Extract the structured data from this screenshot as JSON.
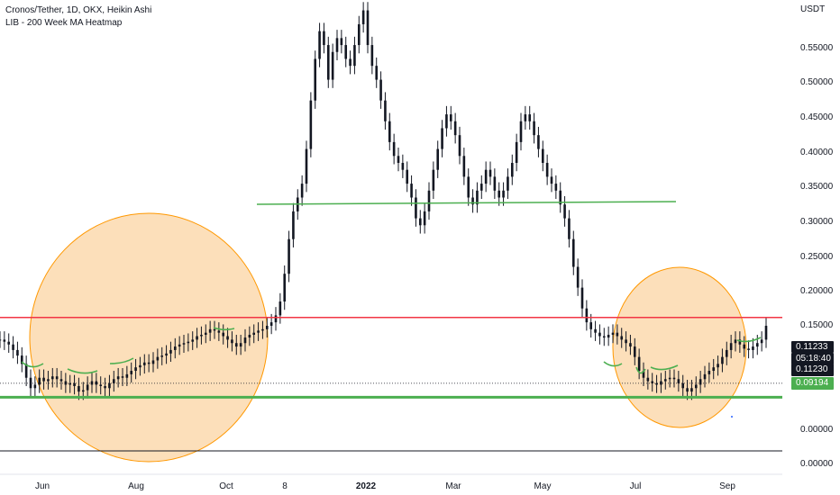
{
  "legend": {
    "symbol_line": "Cronos/Tether, 1D, OKX, Heikin Ashi",
    "indicator_line": "LIB - 200 Week MA Heatmap"
  },
  "colors": {
    "candle": "#131722",
    "red_line": "#f23645",
    "green_line": "#4caf50",
    "green_line_dark": "#089981",
    "circle_fill": "#fbd9ae",
    "circle_stroke": "#ff9800",
    "tag_dark": "#131722",
    "tag_green": "#4caf50"
  },
  "chart_data": {
    "type": "candlestick",
    "title": "Cronos/Tether, 1D, OKX, Heikin Ashi",
    "y_axis_label": "USDT",
    "ylim": [
      -0.005,
      0.665
    ],
    "x_ticks": [
      "Jun",
      "Aug",
      "Oct",
      "8",
      "2022",
      "Mar",
      "May",
      "Jul",
      "Sep"
    ],
    "y_ticks": [
      "0.55000",
      "0.50000",
      "0.45000",
      "0.40000",
      "0.35000",
      "0.30000",
      "0.25000",
      "0.20000",
      "0.15000",
      "0.00000",
      "0.00000"
    ],
    "price_tags": [
      {
        "label": "0.11233",
        "style": "dark"
      },
      {
        "label": "05:18:40",
        "style": "dark"
      },
      {
        "label": "0.11230",
        "style": "dark"
      },
      {
        "label": "0.09194",
        "style": "green"
      }
    ],
    "horizontal_lines": [
      {
        "value": 0.207,
        "color": "red"
      },
      {
        "value": 0.0919,
        "color": "green"
      },
      {
        "value": 0.112,
        "color": "dotted"
      }
    ],
    "series": [
      {
        "values": [
          0.175,
          0.172,
          0.168,
          0.16,
          0.152,
          0.14,
          0.12,
          0.105,
          0.11,
          0.12,
          0.115,
          0.118,
          0.122,
          0.118,
          0.115,
          0.11,
          0.112,
          0.108,
          0.1,
          0.102,
          0.11,
          0.115,
          0.11,
          0.108,
          0.105,
          0.112,
          0.118,
          0.122,
          0.12,
          0.125,
          0.13,
          0.135,
          0.138,
          0.142,
          0.14,
          0.145,
          0.15,
          0.152,
          0.155,
          0.16,
          0.165,
          0.168,
          0.17,
          0.172,
          0.175,
          0.18,
          0.182,
          0.185,
          0.19,
          0.188,
          0.185,
          0.18,
          0.175,
          0.17,
          0.165,
          0.17,
          0.178,
          0.182,
          0.185,
          0.188,
          0.19,
          0.195,
          0.2,
          0.21,
          0.23,
          0.27,
          0.32,
          0.36,
          0.38,
          0.4,
          0.45,
          0.52,
          0.58,
          0.62,
          0.6,
          0.55,
          0.59,
          0.61,
          0.6,
          0.58,
          0.57,
          0.6,
          0.63,
          0.65,
          0.6,
          0.57,
          0.55,
          0.52,
          0.49,
          0.46,
          0.44,
          0.43,
          0.42,
          0.4,
          0.38,
          0.35,
          0.34,
          0.36,
          0.39,
          0.42,
          0.45,
          0.48,
          0.5,
          0.49,
          0.47,
          0.44,
          0.41,
          0.38,
          0.37,
          0.39,
          0.4,
          0.42,
          0.41,
          0.39,
          0.38,
          0.39,
          0.41,
          0.43,
          0.46,
          0.49,
          0.5,
          0.49,
          0.47,
          0.45,
          0.43,
          0.41,
          0.4,
          0.39,
          0.37,
          0.35,
          0.32,
          0.28,
          0.25,
          0.22,
          0.2,
          0.19,
          0.185,
          0.18,
          0.178,
          0.182,
          0.185,
          0.18,
          0.175,
          0.17,
          0.165,
          0.15,
          0.13,
          0.12,
          0.115,
          0.112,
          0.11,
          0.115,
          0.118,
          0.12,
          0.118,
          0.112,
          0.105,
          0.1,
          0.105,
          0.11,
          0.118,
          0.125,
          0.13,
          0.135,
          0.14,
          0.15,
          0.16,
          0.17,
          0.175,
          0.168,
          0.162,
          0.16,
          0.165,
          0.17,
          0.175,
          0.195
        ]
      }
    ]
  }
}
